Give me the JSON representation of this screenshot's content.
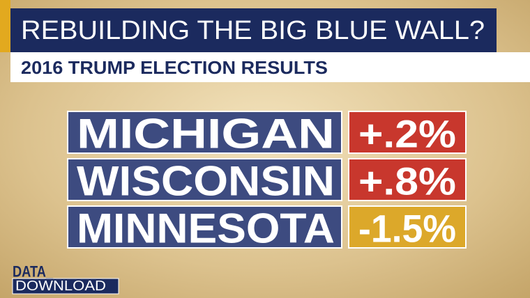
{
  "header": {
    "title": "REBUILDING THE BIG BLUE WALL?",
    "subtitle": "2016 TRUMP ELECTION RESULTS"
  },
  "rows": [
    {
      "state": "MICHIGAN",
      "result": "+.2%"
    },
    {
      "state": "WISCONSIN",
      "result": "+.8%"
    },
    {
      "state": "MINNESOTA",
      "result": "-1.5%"
    }
  ],
  "brand": {
    "line1": "DATA_",
    "line2": "DOWNLOAD"
  }
}
